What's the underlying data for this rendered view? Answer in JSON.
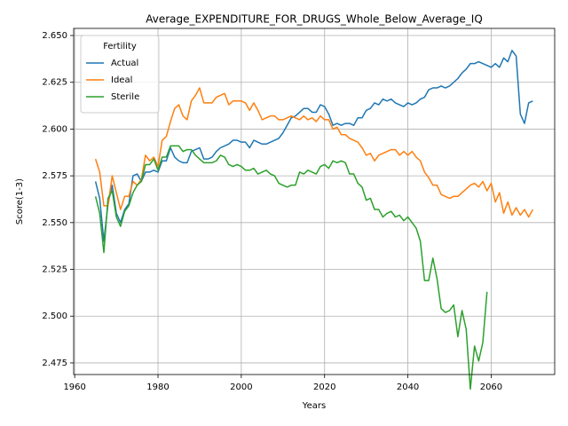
{
  "chart_data": {
    "type": "line",
    "title": "Average_EXPENDITURE_FOR_DRUGS_Whole_Below_Average_IQ",
    "xlabel": "Years",
    "ylabel": "Score(1-3)",
    "legend_title": "Fertility",
    "legend": "upper left",
    "grid": true,
    "xlim": [
      1959.75,
      2075.25
    ],
    "ylim": [
      2.4688,
      2.6538
    ],
    "xticks": [
      1960,
      1980,
      2000,
      2020,
      2040,
      2060
    ],
    "yticks": [
      2.475,
      {
        "value": 2.5,
        "label": "2.500"
      },
      2.525,
      {
        "value": 2.55,
        "label": "2.550"
      },
      2.575,
      {
        "value": 2.6,
        "label": "2.600"
      },
      2.625,
      {
        "value": 2.65,
        "label": "2.650"
      }
    ],
    "x": [
      1965,
      1966,
      1967,
      1968,
      1969,
      1970,
      1971,
      1972,
      1973,
      1974,
      1975,
      1976,
      1977,
      1978,
      1979,
      1980,
      1981,
      1982,
      1983,
      1984,
      1985,
      1986,
      1987,
      1988,
      1989,
      1990,
      1991,
      1992,
      1993,
      1994,
      1995,
      1996,
      1997,
      1998,
      1999,
      2000,
      2001,
      2002,
      2003,
      2004,
      2005,
      2006,
      2007,
      2008,
      2009,
      2010,
      2011,
      2012,
      2013,
      2014,
      2015,
      2016,
      2017,
      2018,
      2019,
      2020,
      2021,
      2022,
      2023,
      2024,
      2025,
      2026,
      2027,
      2028,
      2029,
      2030,
      2031,
      2032,
      2033,
      2034,
      2035,
      2036,
      2037,
      2038,
      2039,
      2040,
      2041,
      2042,
      2043,
      2044,
      2045,
      2046,
      2047,
      2048,
      2049,
      2050,
      2051,
      2052,
      2053,
      2054,
      2055,
      2056,
      2057,
      2058,
      2059,
      2060,
      2061,
      2062,
      2063,
      2064,
      2065,
      2066,
      2067,
      2068,
      2069,
      2070
    ],
    "series": [
      {
        "name": "Actual",
        "color": "#1f77b4",
        "values": [
          2.572,
          2.563,
          2.54,
          2.56,
          2.57,
          2.555,
          2.55,
          2.557,
          2.56,
          2.575,
          2.576,
          2.572,
          2.577,
          2.577,
          2.578,
          2.577,
          2.583,
          2.583,
          2.59,
          2.585,
          2.583,
          2.582,
          2.582,
          2.588,
          2.589,
          2.59,
          2.584,
          2.584,
          2.585,
          2.588,
          2.59,
          2.591,
          2.592,
          2.594,
          2.594,
          2.593,
          2.593,
          2.59,
          2.594,
          2.593,
          2.592,
          2.592,
          2.593,
          2.594,
          2.595,
          2.598,
          2.602,
          2.606,
          2.607,
          2.609,
          2.611,
          2.611,
          2.609,
          2.609,
          2.613,
          2.612,
          2.608,
          2.602,
          2.603,
          2.602,
          2.603,
          2.603,
          2.602,
          2.606,
          2.606,
          2.61,
          2.611,
          2.614,
          2.613,
          2.616,
          2.615,
          2.616,
          2.614,
          2.613,
          2.612,
          2.614,
          2.613,
          2.614,
          2.616,
          2.617,
          2.621,
          2.622,
          2.622,
          2.623,
          2.622,
          2.623,
          2.625,
          2.627,
          2.63,
          2.632,
          2.635,
          2.635,
          2.636,
          2.635,
          2.634,
          2.633,
          2.635,
          2.633,
          2.638,
          2.636,
          2.642,
          2.639,
          2.608,
          2.603,
          2.614,
          2.615
        ]
      },
      {
        "name": "Ideal",
        "color": "#ff7f0e",
        "values": [
          2.584,
          2.577,
          2.559,
          2.559,
          2.575,
          2.566,
          2.557,
          2.564,
          2.564,
          2.572,
          2.57,
          2.573,
          2.586,
          2.583,
          2.585,
          2.58,
          2.594,
          2.596,
          2.604,
          2.611,
          2.613,
          2.607,
          2.605,
          2.615,
          2.618,
          2.622,
          2.614,
          2.614,
          2.614,
          2.617,
          2.618,
          2.619,
          2.613,
          2.615,
          2.615,
          2.615,
          2.614,
          2.61,
          2.614,
          2.61,
          2.605,
          2.606,
          2.607,
          2.607,
          2.605,
          2.605,
          2.606,
          2.607,
          2.606,
          2.605,
          2.607,
          2.605,
          2.606,
          2.604,
          2.607,
          2.605,
          2.605,
          2.6,
          2.601,
          2.597,
          2.597,
          2.595,
          2.594,
          2.593,
          2.59,
          2.586,
          2.587,
          2.583,
          2.586,
          2.587,
          2.588,
          2.589,
          2.589,
          2.586,
          2.588,
          2.586,
          2.588,
          2.585,
          2.583,
          2.577,
          2.574,
          2.57,
          2.57,
          2.565,
          2.564,
          2.563,
          2.564,
          2.564,
          2.566,
          2.568,
          2.57,
          2.571,
          2.569,
          2.572,
          2.567,
          2.571,
          2.561,
          2.566,
          2.555,
          2.561,
          2.554,
          2.558,
          2.554,
          2.557,
          2.553,
          2.557
        ]
      },
      {
        "name": "Sterile",
        "color": "#2ca02c",
        "values": [
          2.564,
          2.555,
          2.534,
          2.563,
          2.567,
          2.553,
          2.548,
          2.556,
          2.559,
          2.566,
          2.57,
          2.572,
          2.581,
          2.581,
          2.584,
          2.578,
          2.585,
          2.585,
          2.591,
          2.591,
          2.591,
          2.588,
          2.589,
          2.589,
          2.586,
          2.584,
          2.582,
          2.582,
          2.582,
          2.583,
          2.586,
          2.585,
          2.581,
          2.58,
          2.581,
          2.58,
          2.578,
          2.578,
          2.579,
          2.576,
          2.577,
          2.578,
          2.576,
          2.575,
          2.571,
          2.57,
          2.569,
          2.57,
          2.57,
          2.577,
          2.576,
          2.578,
          2.577,
          2.576,
          2.58,
          2.581,
          2.579,
          2.583,
          2.582,
          2.583,
          2.582,
          2.576,
          2.576,
          2.571,
          2.569,
          2.562,
          2.563,
          2.557,
          2.557,
          2.553,
          2.555,
          2.556,
          2.553,
          2.554,
          2.551,
          2.553,
          2.55,
          2.547,
          2.54,
          2.519,
          2.519,
          2.531,
          2.52,
          2.504,
          2.502,
          2.503,
          2.506,
          2.489,
          2.503,
          2.493,
          2.461,
          2.484,
          2.476,
          2.486,
          2.513,
          null,
          null,
          null,
          null,
          null,
          null,
          null,
          null,
          null,
          null,
          null
        ]
      }
    ]
  }
}
